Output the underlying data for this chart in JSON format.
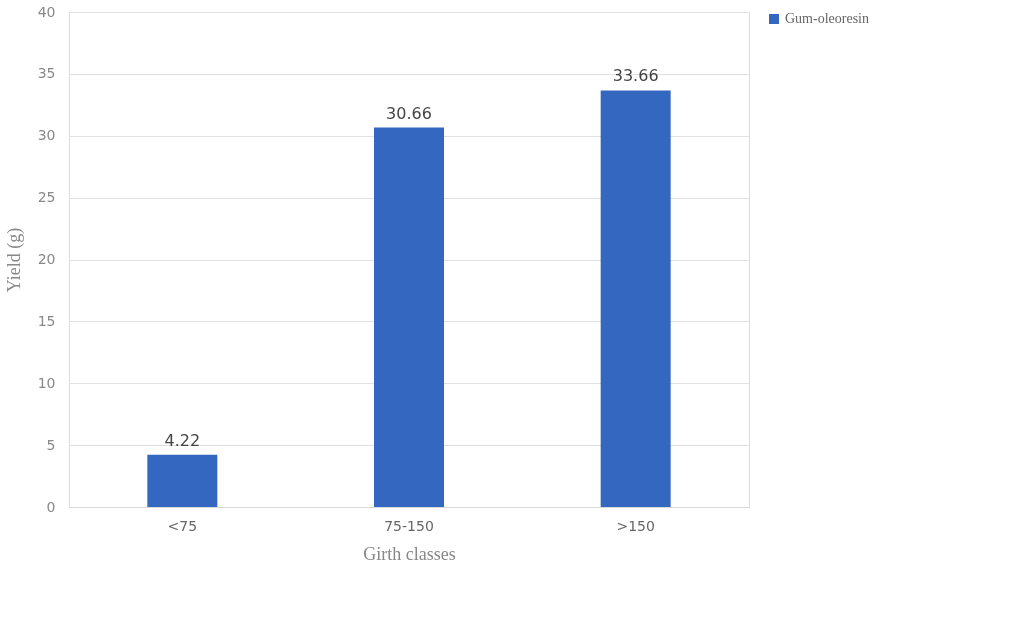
{
  "chart_data": {
    "type": "bar",
    "xlabel": "Girth classes",
    "ylabel": "Yield  (g)",
    "categories": [
      "<75",
      "75-150",
      ">150"
    ],
    "series": [
      {
        "name": "Gum-oleoresin",
        "color": "#3467c0",
        "values": [
          4.22,
          30.66,
          33.66
        ]
      }
    ],
    "ylim": [
      0,
      40
    ],
    "yticks": [
      0,
      5,
      10,
      15,
      20,
      25,
      30,
      35,
      40
    ],
    "grid": "y",
    "legend": "right",
    "data_labels": true
  }
}
